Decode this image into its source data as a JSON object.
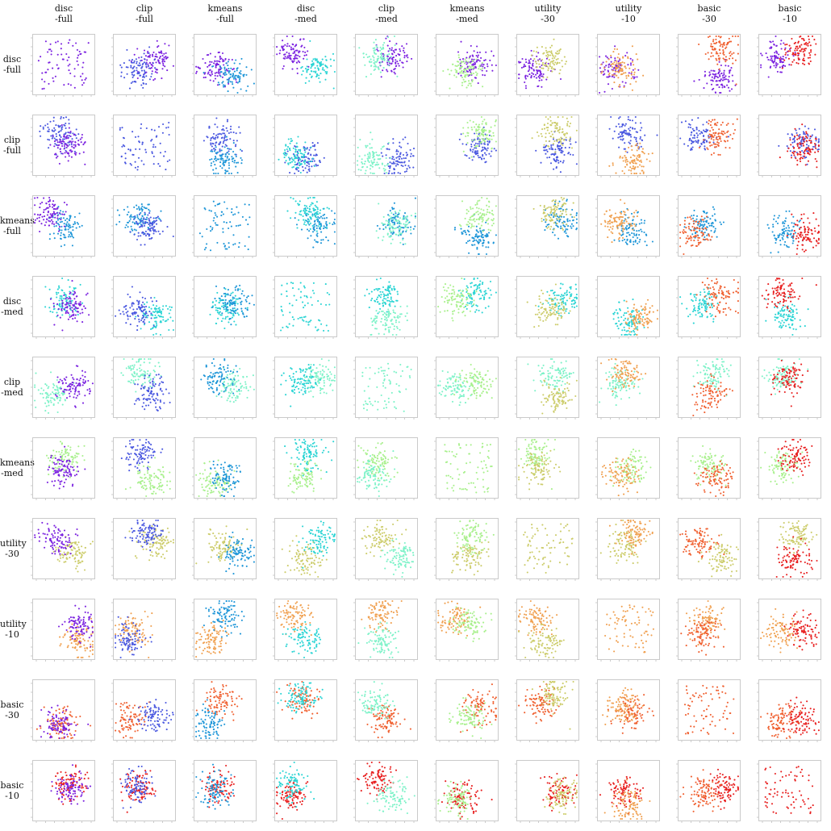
{
  "figure": {
    "column_labels": [
      "disc\n-full",
      "clip\n-full",
      "kmeans\n-full",
      "disc\n-med",
      "clip\n-med",
      "kmeans\n-med",
      "utility\n-30",
      "utility\n-10",
      "basic\n-30",
      "basic\n-10"
    ],
    "row_labels": [
      "disc\n-full",
      "clip\n-full",
      "kmeans\n-full",
      "disc\n-med",
      "clip\n-med",
      "kmeans\n-med",
      "utility\n-30",
      "utility\n-10",
      "basic\n-30",
      "basic\n-10"
    ],
    "method_colors": {
      "disc-full": "#7b22e0",
      "clip-full": "#4a58e0",
      "kmeans-full": "#1e96d8",
      "disc-med": "#2ad4d4",
      "clip-med": "#7df2c8",
      "kmeans-med": "#a8f08c",
      "utility-30": "#cccc6a",
      "utility-10": "#f0a050",
      "basic-30": "#f06030",
      "basic-10": "#e82020"
    }
  },
  "chart_data": {
    "type": "scatter",
    "description_grid": "10x10 grid of t-SNE scatter panels; row method vs column method",
    "methods": [
      "disc-full",
      "clip-full",
      "kmeans-full",
      "disc-med",
      "clip-med",
      "kmeans-med",
      "utility-30",
      "utility-10",
      "basic-30",
      "basic-10"
    ],
    "grid": 10,
    "diagonal_single_series": true,
    "points_per_series": 90,
    "seed": 7
  }
}
